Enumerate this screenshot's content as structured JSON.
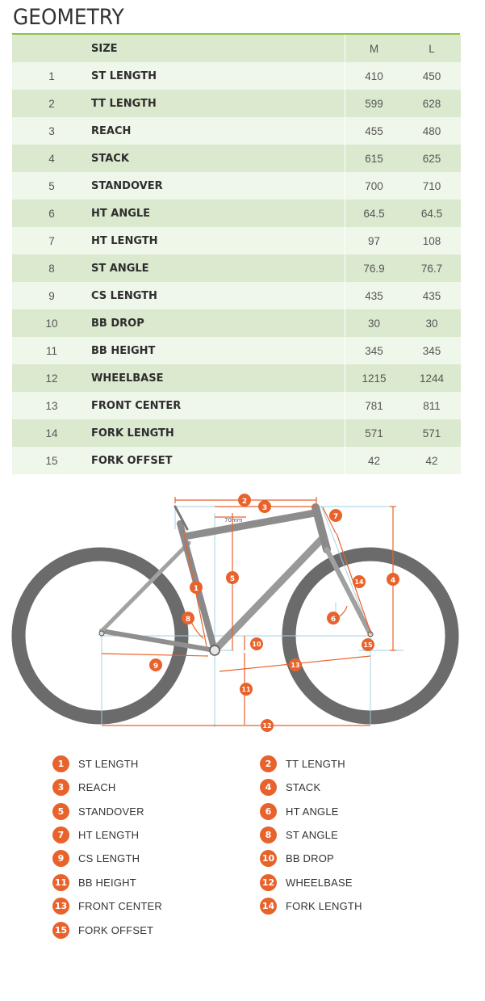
{
  "title": "GEOMETRY",
  "table": {
    "headers": {
      "size": "SIZE",
      "m": "M",
      "l": "L"
    },
    "rows": [
      {
        "num": "1",
        "name": "ST LENGTH",
        "m": "410",
        "l": "450"
      },
      {
        "num": "2",
        "name": "TT LENGTH",
        "m": "599",
        "l": "628"
      },
      {
        "num": "3",
        "name": "REACH",
        "m": "455",
        "l": "480"
      },
      {
        "num": "4",
        "name": "STACK",
        "m": "615",
        "l": "625"
      },
      {
        "num": "5",
        "name": "STANDOVER",
        "m": "700",
        "l": "710"
      },
      {
        "num": "6",
        "name": "HT ANGLE",
        "m": "64.5",
        "l": "64.5"
      },
      {
        "num": "7",
        "name": "HT LENGTH",
        "m": "97",
        "l": "108"
      },
      {
        "num": "8",
        "name": "ST ANGLE",
        "m": "76.9",
        "l": "76.7"
      },
      {
        "num": "9",
        "name": "CS LENGTH",
        "m": "435",
        "l": "435"
      },
      {
        "num": "10",
        "name": "BB DROP",
        "m": "30",
        "l": "30"
      },
      {
        "num": "11",
        "name": "BB HEIGHT",
        "m": "345",
        "l": "345"
      },
      {
        "num": "12",
        "name": "WHEELBASE",
        "m": "1215",
        "l": "1244"
      },
      {
        "num": "13",
        "name": "FRONT CENTER",
        "m": "781",
        "l": "811"
      },
      {
        "num": "14",
        "name": "FORK LENGTH",
        "m": "571",
        "l": "571"
      },
      {
        "num": "15",
        "name": "FORK OFFSET",
        "m": "42",
        "l": "42"
      }
    ]
  },
  "diagram": {
    "offset_label": "70mm",
    "markers": [
      "1",
      "2",
      "3",
      "4",
      "5",
      "6",
      "7",
      "8",
      "9",
      "10",
      "11",
      "12",
      "13",
      "14",
      "15"
    ]
  },
  "legend": [
    {
      "num": "1",
      "label": "ST LENGTH"
    },
    {
      "num": "2",
      "label": "TT LENGTH"
    },
    {
      "num": "3",
      "label": "REACH"
    },
    {
      "num": "4",
      "label": "STACK"
    },
    {
      "num": "5",
      "label": "STANDOVER"
    },
    {
      "num": "6",
      "label": "HT ANGLE"
    },
    {
      "num": "7",
      "label": "HT LENGTH"
    },
    {
      "num": "8",
      "label": "ST ANGLE"
    },
    {
      "num": "9",
      "label": "CS LENGTH"
    },
    {
      "num": "10",
      "label": "BB DROP"
    },
    {
      "num": "11",
      "label": "BB HEIGHT"
    },
    {
      "num": "12",
      "label": "WHEELBASE"
    },
    {
      "num": "13",
      "label": "FRONT CENTER"
    },
    {
      "num": "14",
      "label": "FORK LENGTH"
    },
    {
      "num": "15",
      "label": "FORK OFFSET"
    }
  ],
  "colors": {
    "accent": "#e8622c",
    "rule": "#8bc34a",
    "row_dark": "#dbe9cf",
    "row_light": "#eff6ea",
    "frame": "#8f8f8f",
    "tire": "#6b6b6b"
  }
}
